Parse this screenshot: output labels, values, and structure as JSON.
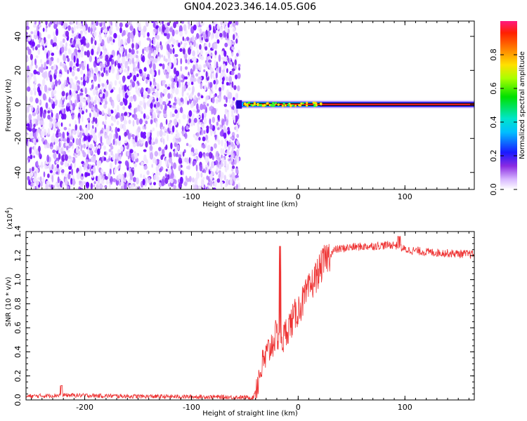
{
  "figure_title": "GN04.2023.346.14.05.G06",
  "chart_data": [
    {
      "type": "heatmap",
      "panel": "top",
      "xlabel": "Height of straight line (km)",
      "ylabel": "Frequency (Hz)",
      "xlim": [
        -255,
        165
      ],
      "ylim": [
        -50,
        49
      ],
      "xticks": [
        -200,
        -100,
        0,
        100
      ],
      "yticks": [
        -40,
        -20,
        0,
        20,
        40
      ],
      "colorbar": {
        "label": "Normalized spectral amplitude",
        "range": [
          0,
          1
        ],
        "ticks": [
          "0.0",
          "0.2",
          "0.4",
          "0.6",
          "0.8"
        ]
      },
      "features": {
        "noise_region_x": [
          -255,
          -55
        ],
        "signal_line_x": [
          -58,
          165
        ],
        "signal_frequency_hz": 0
      }
    },
    {
      "type": "line",
      "panel": "bottom",
      "xlabel": "Height of straight line (km)",
      "ylabel": "SNR (10 * v/v)",
      "yscale_note": "(x10",
      "yscale_exp": "4",
      "yscale_close": ")",
      "xlim": [
        -255,
        165
      ],
      "ylim": [
        0,
        1.4
      ],
      "xticks": [
        -200,
        -100,
        0,
        100
      ],
      "yticks": [
        "0.0",
        "0.2",
        "0.4",
        "0.6",
        "0.8",
        "1.0",
        "1.2",
        "1.4"
      ],
      "series": [
        {
          "color": "#ee3333",
          "x": [
            -255,
            -220,
            -150,
            -80,
            -42,
            -38,
            -34,
            -28,
            -22,
            -17,
            -14,
            -10,
            -6,
            -2,
            2,
            8,
            14,
            20,
            26,
            35,
            50,
            70,
            90,
            95,
            100,
            120,
            140,
            165
          ],
          "y": [
            0.03,
            0.04,
            0.03,
            0.025,
            0.02,
            0.15,
            0.28,
            0.4,
            0.52,
            0.55,
            0.5,
            0.6,
            0.65,
            0.72,
            0.78,
            0.88,
            0.98,
            1.08,
            1.18,
            1.25,
            1.27,
            1.28,
            1.29,
            1.27,
            1.25,
            1.23,
            1.22,
            1.21
          ]
        }
      ]
    }
  ]
}
